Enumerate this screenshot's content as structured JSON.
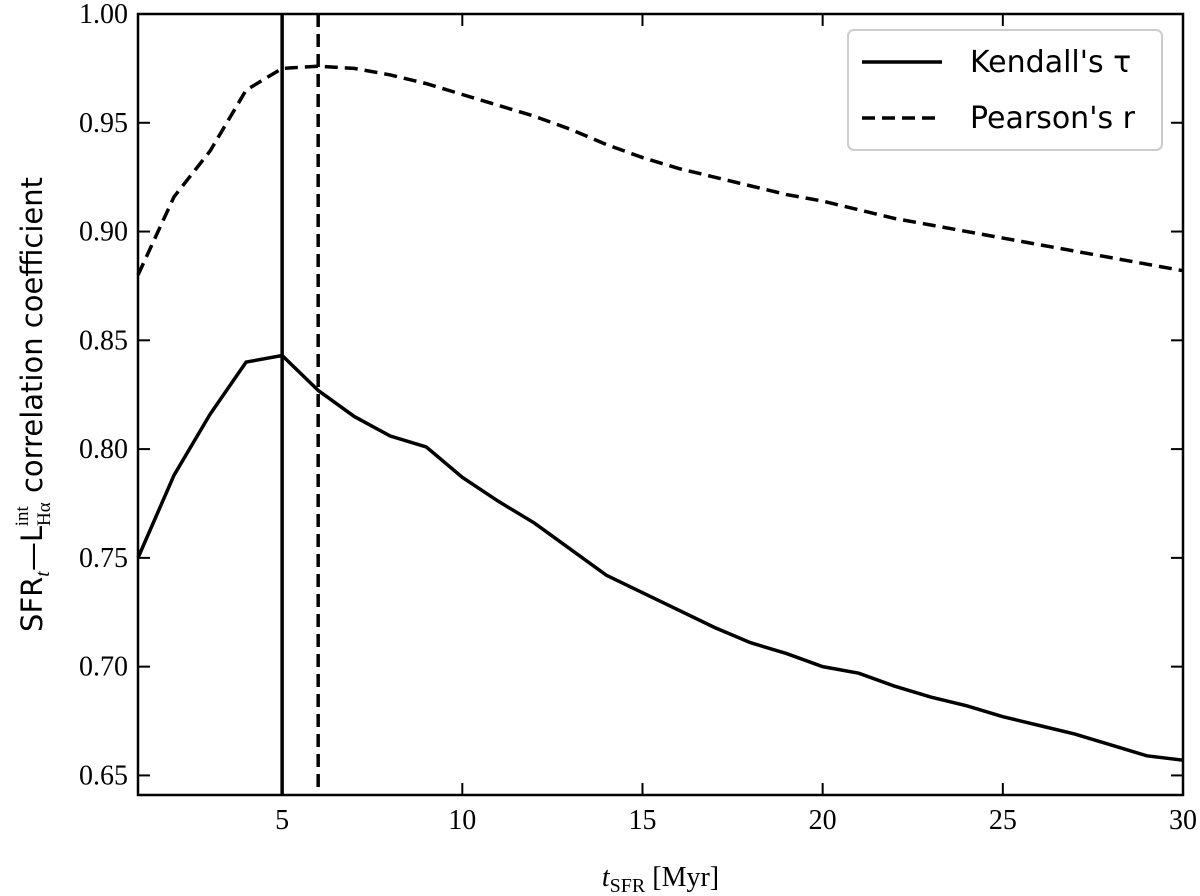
{
  "chart_data": {
    "type": "line",
    "xlabel": [
      "t",
      "SFR",
      " [Myr]"
    ],
    "ylabel": [
      "SFR",
      "t",
      "—L",
      "Hα",
      "int",
      " correlation coefficient"
    ],
    "x": [
      1,
      2,
      3,
      4,
      5,
      6,
      7,
      8,
      9,
      10,
      11,
      12,
      13,
      14,
      15,
      16,
      17,
      18,
      19,
      20,
      21,
      22,
      23,
      24,
      25,
      26,
      27,
      28,
      29,
      30
    ],
    "series": [
      {
        "name": "Kendall's τ",
        "color": "#000000",
        "linestyle": "solid",
        "peak_x": 5,
        "values": [
          0.75,
          0.788,
          0.816,
          0.84,
          0.843,
          0.827,
          0.815,
          0.806,
          0.801,
          0.787,
          0.776,
          0.766,
          0.754,
          0.742,
          0.734,
          0.726,
          0.718,
          0.711,
          0.706,
          0.7,
          0.697,
          0.691,
          0.686,
          0.682,
          0.677,
          0.673,
          0.669,
          0.664,
          0.659,
          0.657
        ]
      },
      {
        "name": "Pearson's r",
        "color": "#000000",
        "linestyle": "dashed",
        "peak_x": 6,
        "values": [
          0.88,
          0.916,
          0.937,
          0.965,
          0.975,
          0.976,
          0.975,
          0.972,
          0.968,
          0.963,
          0.958,
          0.953,
          0.947,
          0.94,
          0.934,
          0.929,
          0.925,
          0.921,
          0.917,
          0.914,
          0.91,
          0.906,
          0.903,
          0.9,
          0.897,
          0.894,
          0.891,
          0.888,
          0.885,
          0.882
        ]
      }
    ],
    "xlim": [
      1,
      30
    ],
    "xticks": [
      5,
      10,
      15,
      20,
      25,
      30
    ],
    "ylim": [
      0.641,
      1.0
    ],
    "yticks": [
      0.65,
      {
        "value": 0.7,
        "label": "0.70"
      },
      0.75,
      {
        "value": 0.8,
        "label": "0.80"
      },
      0.85,
      {
        "value": 0.9,
        "label": "0.90"
      },
      0.95,
      {
        "value": 1.0,
        "label": "1.00"
      }
    ],
    "legend": "upper right"
  }
}
